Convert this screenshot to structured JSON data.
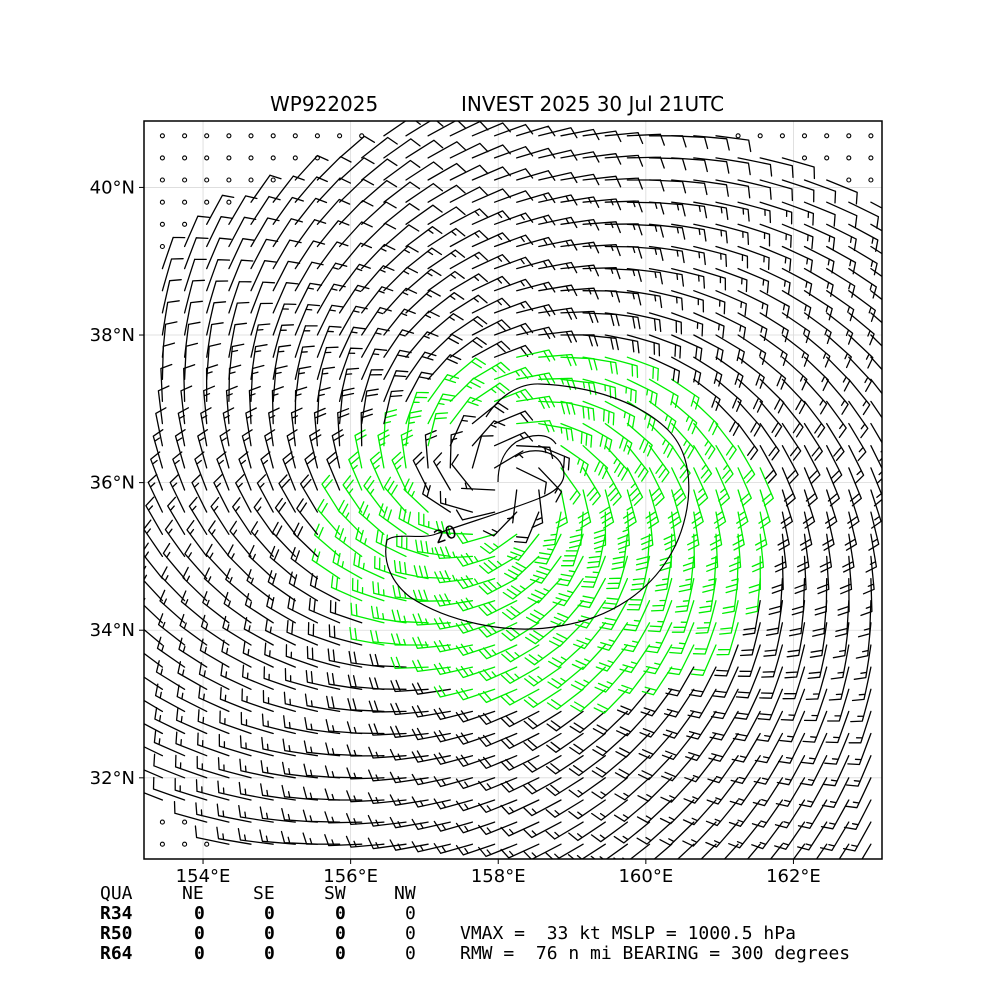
{
  "header": {
    "storm_id": "WP922025",
    "storm_title": "INVEST 2025 30 Jul 21UTC"
  },
  "chart_data": {
    "type": "wind-barb-map",
    "title_left": "WP922025",
    "title_right": "INVEST 2025 30 Jul 21UTC",
    "lon_range": [
      153.2,
      163.2
    ],
    "lat_range": [
      30.9,
      40.9
    ],
    "x_ticks": [
      {
        "value": 154,
        "label": "154°E"
      },
      {
        "value": 156,
        "label": "156°E"
      },
      {
        "value": 158,
        "label": "158°E"
      },
      {
        "value": 160,
        "label": "160°E"
      },
      {
        "value": 162,
        "label": "162°E"
      }
    ],
    "y_ticks": [
      {
        "value": 32,
        "label": "32°N"
      },
      {
        "value": 34,
        "label": "34°N"
      },
      {
        "value": 36,
        "label": "36°N"
      },
      {
        "value": 38,
        "label": "38°N"
      },
      {
        "value": 40,
        "label": "40°N"
      }
    ],
    "grid": true,
    "storm_center": {
      "lon": 158.0,
      "lat": 36.0
    },
    "vmax_kt": 33,
    "rmw_nmi": 76,
    "contour_label": "20",
    "colors": {
      "barb_default": "#000000",
      "barb_strong": "#00ee00",
      "contour": "#000000"
    }
  },
  "wind_radii_table": {
    "headers": [
      "QUA",
      "NE",
      "SE",
      "SW",
      "NW"
    ],
    "rows": [
      {
        "label": "R34",
        "values": [
          "0",
          "0",
          "0",
          "0"
        ]
      },
      {
        "label": "R50",
        "values": [
          "0",
          "0",
          "0",
          "0"
        ]
      },
      {
        "label": "R64",
        "values": [
          "0",
          "0",
          "0",
          "0"
        ]
      }
    ]
  },
  "info": {
    "line1": "VMAX =  33 kt MSLP = 1000.5 hPa",
    "line2": "RMW =  76 n mi BEARING = 300 degrees"
  }
}
